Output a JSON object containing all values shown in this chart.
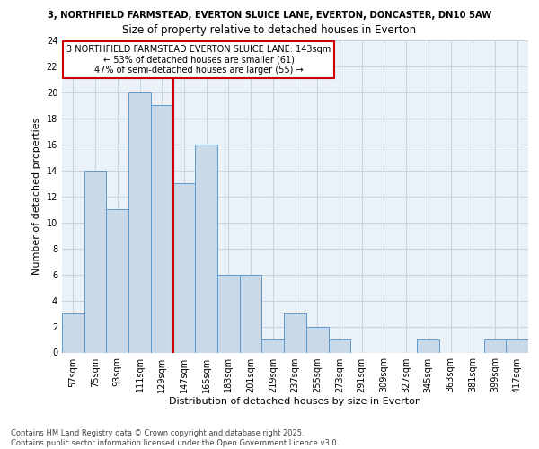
{
  "title_line1": "3, NORTHFIELD FARMSTEAD, EVERTON SLUICE LANE, EVERTON, DONCASTER, DN10 5AW",
  "title_line2": "Size of property relative to detached houses in Everton",
  "xlabel": "Distribution of detached houses by size in Everton",
  "ylabel": "Number of detached properties",
  "bin_labels": [
    "57sqm",
    "75sqm",
    "93sqm",
    "111sqm",
    "129sqm",
    "147sqm",
    "165sqm",
    "183sqm",
    "201sqm",
    "219sqm",
    "237sqm",
    "255sqm",
    "273sqm",
    "291sqm",
    "309sqm",
    "327sqm",
    "345sqm",
    "363sqm",
    "381sqm",
    "399sqm",
    "417sqm"
  ],
  "bar_values": [
    3,
    14,
    11,
    20,
    19,
    13,
    16,
    6,
    6,
    1,
    3,
    2,
    1,
    0,
    0,
    0,
    1,
    0,
    0,
    1,
    1
  ],
  "bar_color": "#c9d9e8",
  "bar_edge_color": "#5b9bd5",
  "vline_color": "#cc0000",
  "vline_bin_index": 5,
  "annotation_text_line1": "3 NORTHFIELD FARMSTEAD EVERTON SLUICE LANE: 143sqm",
  "annotation_text_line2": "← 53% of detached houses are smaller (61)",
  "annotation_text_line3": "47% of semi-detached houses are larger (55) →",
  "annotation_box_color": "#ffffff",
  "annotation_box_edge": "#cc0000",
  "ylim": [
    0,
    24
  ],
  "yticks": [
    0,
    2,
    4,
    6,
    8,
    10,
    12,
    14,
    16,
    18,
    20,
    22,
    24
  ],
  "footer_line1": "Contains HM Land Registry data © Crown copyright and database right 2025.",
  "footer_line2": "Contains public sector information licensed under the Open Government Licence v3.0.",
  "grid_color": "#c8d4e0",
  "background_color": "#eaf2f8",
  "title1_fontsize": 7.2,
  "title2_fontsize": 8.5,
  "ylabel_fontsize": 8.0,
  "xlabel_fontsize": 8.0,
  "tick_fontsize": 7.0,
  "annot_fontsize": 7.0,
  "footer_fontsize": 6.0
}
